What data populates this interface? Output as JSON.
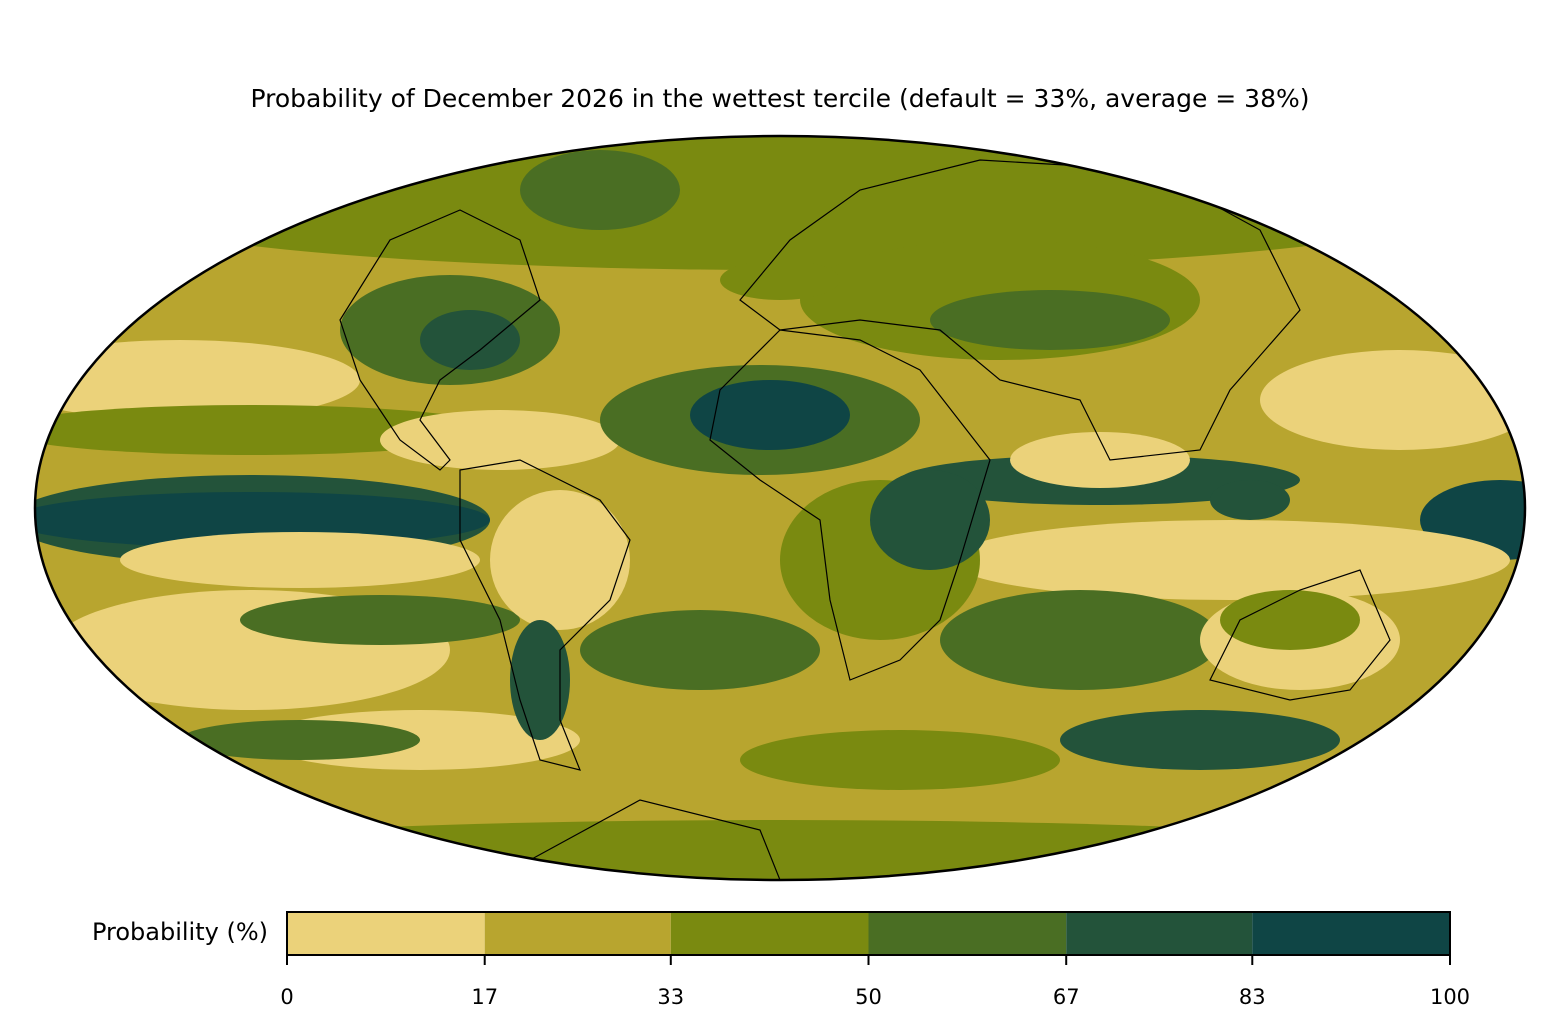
{
  "title": "Probability of December 2026 in the wettest tercile (default = 33%, average = 38%)",
  "colorbar": {
    "label": "Probability (%)",
    "lim": [
      0,
      100
    ],
    "ticks": [
      0,
      17,
      33,
      50,
      67,
      83,
      100
    ],
    "colors": [
      "#ebd27a",
      "#b8a52f",
      "#7a8a10",
      "#4a6e23",
      "#23533a",
      "#0f4545"
    ]
  }
}
